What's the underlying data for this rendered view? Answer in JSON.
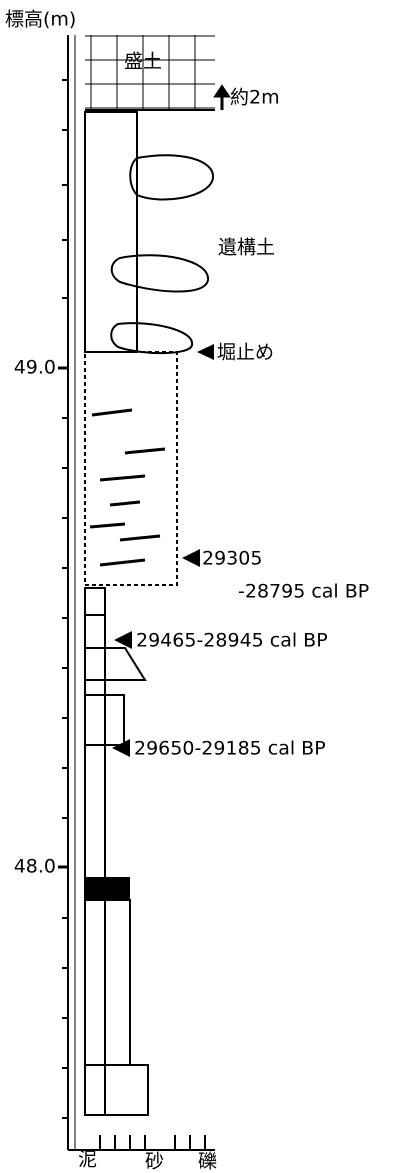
{
  "axis": {
    "label": "標高(m)",
    "ticks": [
      {
        "value": 49,
        "label": "49.0"
      },
      {
        "value": 48,
        "label": "48.0"
      }
    ]
  },
  "layers": {
    "fill": "盛土",
    "feature_fill": "遺構土"
  },
  "annotations": {
    "thickness": "約2m",
    "excavation_limit": "堀止め",
    "date1": [
      "29305",
      "-28795 cal BP"
    ],
    "date2": "29465-28945 cal BP",
    "date3": "29650-29185 cal BP"
  },
  "grain_scale": [
    "泥",
    "砂",
    "礫"
  ]
}
